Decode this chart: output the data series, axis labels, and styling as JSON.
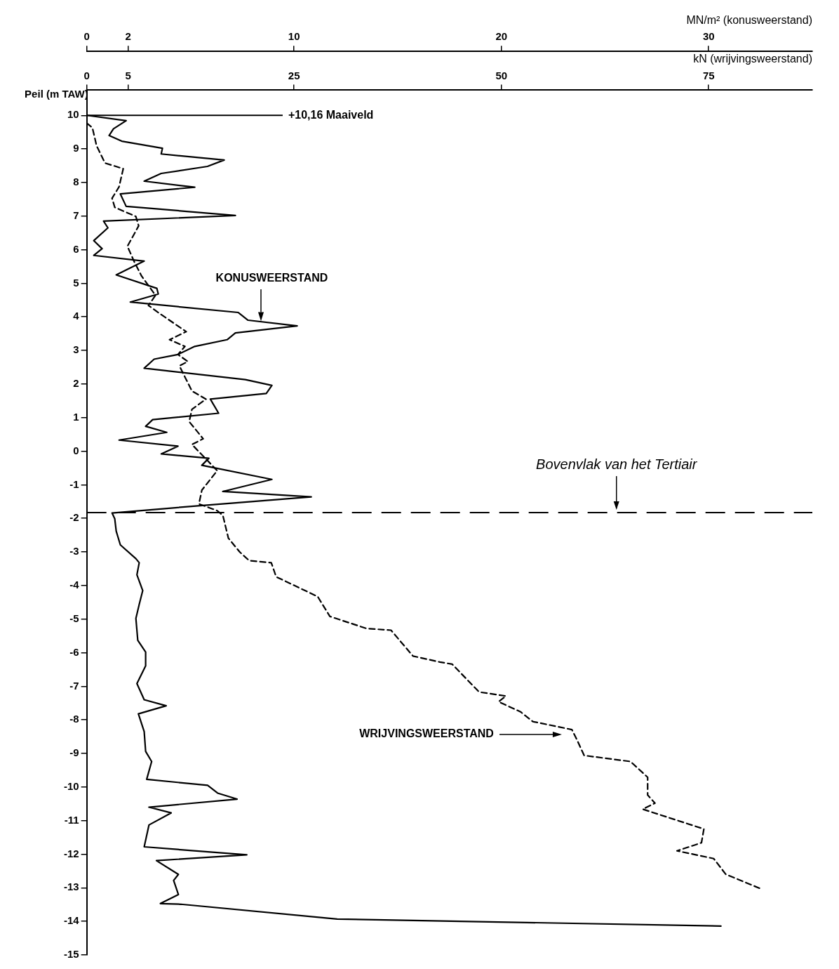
{
  "chart_data": {
    "type": "line",
    "xlabel": "MN/m² (konusweerstand)",
    "x2label": "kN (wrijvingsweerstand)",
    "ylabel": "Peil (m TAW)",
    "xlim": [
      0,
      35
    ],
    "xticks": [
      0,
      2,
      10,
      20,
      30
    ],
    "x2lim": [
      0,
      87.5
    ],
    "x2ticks": [
      0,
      5,
      25,
      50,
      75
    ],
    "ylim": [
      -15,
      10.75
    ],
    "yticks": [
      -15,
      -14,
      -13,
      -12,
      -11,
      -10,
      -9,
      -8,
      -7,
      -6,
      -5,
      -4,
      -3,
      -2,
      -1,
      0,
      1,
      2,
      3,
      4,
      5,
      6,
      7,
      8,
      9,
      10
    ],
    "grid": false,
    "legend": false,
    "marker": "none",
    "series": [
      {
        "color": "#000000",
        "line_style": "solid",
        "x": [
          0,
          1.9,
          1.29,
          1.08,
          1.69,
          3.65,
          3.59,
          6.63,
          5.82,
          3.59,
          2.77,
          5.21,
          1.62,
          1.9,
          7.17,
          0.81,
          1.02,
          0.34,
          0.74,
          0.34,
          2.77,
          1.42,
          3.38,
          3.45,
          2.1,
          7.31,
          7.78,
          10.15,
          7.17,
          6.77,
          5.21,
          4.4,
          3.25,
          2.77,
          7.65,
          8.93,
          8.66,
          5.96,
          6.36,
          3.18,
          2.84,
          3.86,
          1.56,
          4.4,
          3.59,
          5.89,
          5.55,
          8.93,
          6.56,
          10.83,
          5.48,
          1.22,
          1.35,
          1.42,
          1.62,
          2.37,
          2.53,
          2.42,
          2.7,
          2.53,
          2.37,
          2.46,
          2.84,
          2.84,
          2.42,
          2.77,
          3.83,
          2.49,
          2.77,
          2.84,
          3.13,
          2.89,
          5.83,
          6.31,
          7.25,
          3.0,
          4.07,
          3.0,
          2.77,
          7.72,
          3.36,
          4.42,
          4.19,
          4.42,
          3.55,
          4.54,
          12.08,
          30.59
        ],
        "values": [
          10,
          9.84,
          9.6,
          9.4,
          9.23,
          9.02,
          8.85,
          8.67,
          8.48,
          8.27,
          8.04,
          7.86,
          7.66,
          7.29,
          7.02,
          6.85,
          6.65,
          6.27,
          6.03,
          5.83,
          5.66,
          5.25,
          4.85,
          4.68,
          4.44,
          4.13,
          3.9,
          3.73,
          3.52,
          3.32,
          3.12,
          2.88,
          2.74,
          2.47,
          2.13,
          1.96,
          1.72,
          1.55,
          1.13,
          0.94,
          0.74,
          0.56,
          0.33,
          0.15,
          -0.08,
          -0.21,
          -0.42,
          -0.84,
          -1.2,
          -1.36,
          -1.62,
          -1.84,
          -2.01,
          -2.38,
          -2.79,
          -3.2,
          -3.32,
          -3.68,
          -4.15,
          -4.56,
          -4.98,
          -5.63,
          -5.98,
          -6.39,
          -6.92,
          -7.4,
          -7.58,
          -7.82,
          -8.35,
          -8.94,
          -9.24,
          -9.77,
          -9.95,
          -10.18,
          -10.36,
          -10.6,
          -10.77,
          -11.13,
          -11.78,
          -12.02,
          -12.19,
          -12.6,
          -12.78,
          -13.2,
          -13.47,
          -13.49,
          -13.93,
          -14.14
        ]
      },
      {
        "color": "#000000",
        "line_style": "dashed",
        "axis": "x2",
        "x": [
          0,
          0.68,
          1.19,
          2.2,
          4.4,
          3.89,
          3.05,
          3.38,
          5.92,
          6.26,
          4.9,
          5.75,
          6.6,
          8.29,
          7.44,
          8.96,
          12.0,
          9.98,
          11.84,
          11.0,
          12.18,
          11.17,
          12.0,
          12.69,
          14.38,
          12.69,
          12.35,
          14.04,
          12.69,
          15.73,
          13.88,
          13.53,
          15.73,
          16.41,
          17.08,
          18.44,
          19.6,
          22.25,
          22.84,
          27.85,
          29.32,
          33.75,
          36.69,
          39.34,
          42.59,
          44.06,
          47.31,
          50.55,
          49.66,
          52.31,
          53.79,
          58.5,
          59.09,
          59.98,
          65.57,
          67.64,
          67.64,
          68.52,
          67.05,
          74.42,
          74.13,
          71.18,
          75.6,
          77.07,
          81.2
        ],
        "values": [
          9.77,
          9.63,
          9.09,
          8.58,
          8.41,
          7.87,
          7.53,
          7.26,
          6.99,
          6.71,
          6.1,
          5.63,
          5.22,
          4.64,
          4.34,
          4.07,
          3.56,
          3.32,
          3.12,
          2.88,
          2.67,
          2.54,
          2.13,
          1.79,
          1.55,
          1.25,
          0.88,
          0.37,
          0.2,
          -0.58,
          -1.16,
          -1.57,
          -1.77,
          -1.91,
          -2.59,
          -3.0,
          -3.26,
          -3.32,
          -3.74,
          -4.33,
          -4.92,
          -5.28,
          -5.33,
          -6.1,
          -6.28,
          -6.34,
          -7.17,
          -7.29,
          -7.46,
          -7.76,
          -8.05,
          -8.29,
          -8.58,
          -9.06,
          -9.24,
          -9.71,
          -10.24,
          -10.48,
          -10.66,
          -11.25,
          -11.66,
          -11.9,
          -12.13,
          -12.6,
          -13.02
        ]
      }
    ],
    "ref_lines": [
      {
        "axis": "y",
        "value": 10,
        "label": "+10,16 Maaiveld",
        "line_style": "solid",
        "color": "#000000"
      },
      {
        "axis": "y",
        "value": -1.83,
        "label": "Bovenvlak van het Tertiair",
        "line_style": "dashed",
        "color": "#000000"
      }
    ],
    "annotations": [
      "KONUSWEERSTAND",
      "WRIJVINGSWEERSTAND"
    ]
  }
}
